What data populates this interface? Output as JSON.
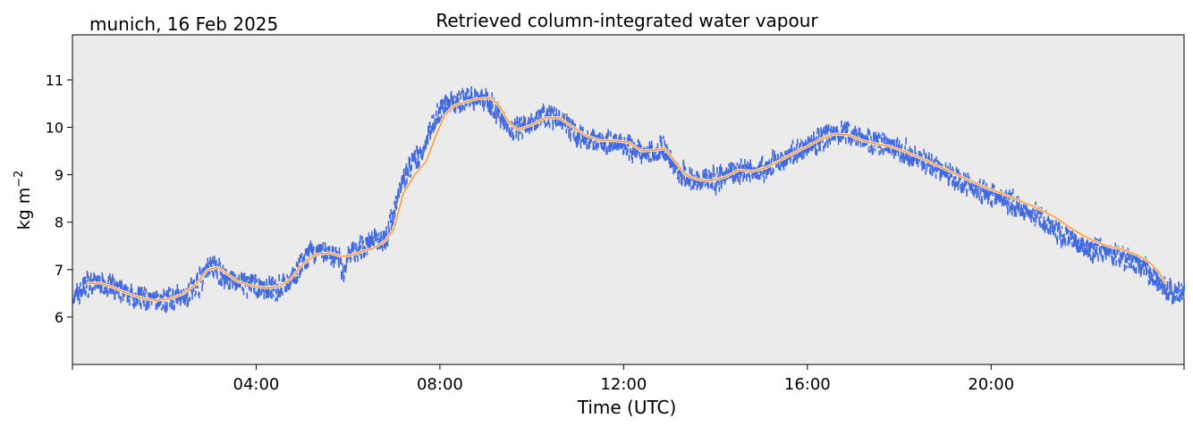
{
  "location_label": "munich, 16 Feb 2025",
  "chart_data": {
    "type": "line",
    "title": "Retrieved column-integrated water vapour",
    "xlabel": "Time (UTC)",
    "ylabel_main": "kg m",
    "ylabel_sup": "−2",
    "xlim_hours": [
      0,
      24.2
    ],
    "ylim": [
      5.0,
      11.95
    ],
    "x_ticks": [
      {
        "hour": 4,
        "label": "04:00"
      },
      {
        "hour": 8,
        "label": "08:00"
      },
      {
        "hour": 12,
        "label": "12:00"
      },
      {
        "hour": 16,
        "label": "16:00"
      },
      {
        "hour": 20,
        "label": "20:00"
      }
    ],
    "y_ticks": [
      {
        "value": 6,
        "label": "6"
      },
      {
        "value": 7,
        "label": "7"
      },
      {
        "value": 8,
        "label": "8"
      },
      {
        "value": 9,
        "label": "9"
      },
      {
        "value": 10,
        "label": "10"
      },
      {
        "value": 11,
        "label": "11"
      }
    ],
    "grid": false,
    "background": "#ebebeb",
    "series": [
      {
        "style": "dense scatter (raw retrievals)",
        "color": "#4169e1",
        "x_hours": [
          0.02,
          0.3,
          0.6,
          1.0,
          1.3,
          1.6,
          1.9,
          2.2,
          2.5,
          2.75,
          2.95,
          3.1,
          3.3,
          3.6,
          3.9,
          4.2,
          4.5,
          4.7,
          4.9,
          5.05,
          5.2,
          5.45,
          5.65,
          5.8,
          5.9,
          6.0,
          6.15,
          6.3,
          6.5,
          6.7,
          6.85,
          7.0,
          7.15,
          7.3,
          7.45,
          7.6,
          7.75,
          7.9,
          8.05,
          8.2,
          8.4,
          8.6,
          8.8,
          9.0,
          9.15,
          9.3,
          9.45,
          9.6,
          9.75,
          10.0,
          10.25,
          10.5,
          10.75,
          11.0,
          11.25,
          11.5,
          11.75,
          12.0,
          12.25,
          12.45,
          12.65,
          12.85,
          13.0,
          13.2,
          13.4,
          13.6,
          13.8,
          14.0,
          14.2,
          14.45,
          14.6,
          14.8,
          15.0,
          15.25,
          15.5,
          15.75,
          16.0,
          16.25,
          16.5,
          16.75,
          17.0,
          17.25,
          17.5,
          17.75,
          18.0,
          18.25,
          18.5,
          18.75,
          19.0,
          19.25,
          19.5,
          19.75,
          20.0,
          20.25,
          20.5,
          20.75,
          21.0,
          21.25,
          21.5,
          21.75,
          22.0,
          22.25,
          22.5,
          22.75,
          23.0,
          23.25,
          23.5,
          23.65,
          23.8,
          24.0,
          24.2
        ],
        "values": [
          6.4,
          6.68,
          6.72,
          6.55,
          6.45,
          6.38,
          6.33,
          6.38,
          6.5,
          6.72,
          7.05,
          7.05,
          6.85,
          6.72,
          6.66,
          6.6,
          6.62,
          6.72,
          7.0,
          7.18,
          7.32,
          7.36,
          7.32,
          7.22,
          6.9,
          7.3,
          7.38,
          7.45,
          7.62,
          7.62,
          7.75,
          8.25,
          8.78,
          9.08,
          9.3,
          9.4,
          9.9,
          10.2,
          10.42,
          10.48,
          10.55,
          10.6,
          10.65,
          10.58,
          10.45,
          10.25,
          10.05,
          9.95,
          10.0,
          10.1,
          10.22,
          10.2,
          10.05,
          9.85,
          9.72,
          9.72,
          9.7,
          9.65,
          9.5,
          9.45,
          9.5,
          9.6,
          9.35,
          9.05,
          8.9,
          8.87,
          8.85,
          8.9,
          8.98,
          9.08,
          9.1,
          9.07,
          9.12,
          9.22,
          9.35,
          9.48,
          9.62,
          9.72,
          9.82,
          9.88,
          9.85,
          9.76,
          9.66,
          9.62,
          9.55,
          9.4,
          9.3,
          9.2,
          9.05,
          8.9,
          8.8,
          8.68,
          8.6,
          8.5,
          8.38,
          8.25,
          8.12,
          7.95,
          7.75,
          7.62,
          7.5,
          7.44,
          7.38,
          7.3,
          7.2,
          7.05,
          6.9,
          6.72,
          6.6,
          6.5,
          6.52
        ]
      },
      {
        "style": "smoothed line",
        "color": "#ff8c2a",
        "x_hours": [
          0.3,
          0.6,
          0.9,
          1.2,
          1.5,
          1.8,
          2.1,
          2.4,
          2.7,
          2.95,
          3.15,
          3.35,
          3.6,
          3.9,
          4.2,
          4.5,
          4.75,
          5.0,
          5.3,
          5.6,
          5.85,
          6.05,
          6.3,
          6.55,
          6.8,
          7.0,
          7.2,
          7.45,
          7.7,
          7.9,
          8.1,
          8.3,
          8.5,
          8.8,
          9.1,
          9.3,
          9.5,
          9.7,
          10.0,
          10.3,
          10.6,
          10.9,
          11.2,
          11.5,
          11.8,
          12.1,
          12.4,
          12.7,
          12.9,
          13.1,
          13.35,
          13.6,
          13.9,
          14.2,
          14.5,
          14.8,
          15.1,
          15.4,
          15.7,
          16.0,
          16.3,
          16.6,
          16.9,
          17.2,
          17.5,
          17.8,
          18.1,
          18.4,
          18.7,
          19.0,
          19.3,
          19.6,
          19.9,
          20.2,
          20.5,
          20.8,
          21.1,
          21.4,
          21.7,
          22.0,
          22.3,
          22.6,
          22.9,
          23.2,
          23.45,
          23.65,
          23.8
        ],
        "values": [
          6.7,
          6.72,
          6.62,
          6.5,
          6.4,
          6.35,
          6.38,
          6.48,
          6.7,
          7.0,
          7.05,
          6.92,
          6.75,
          6.66,
          6.62,
          6.64,
          6.8,
          7.1,
          7.32,
          7.35,
          7.28,
          7.3,
          7.38,
          7.45,
          7.6,
          7.85,
          8.6,
          9.0,
          9.28,
          9.8,
          10.25,
          10.45,
          10.52,
          10.6,
          10.62,
          10.45,
          10.1,
          9.95,
          10.05,
          10.2,
          10.2,
          10.0,
          9.82,
          9.72,
          9.72,
          9.68,
          9.5,
          9.52,
          9.55,
          9.3,
          9.0,
          8.9,
          8.87,
          8.95,
          9.1,
          9.07,
          9.15,
          9.3,
          9.45,
          9.6,
          9.76,
          9.86,
          9.84,
          9.72,
          9.65,
          9.6,
          9.5,
          9.38,
          9.25,
          9.12,
          8.98,
          8.85,
          8.72,
          8.62,
          8.5,
          8.38,
          8.25,
          8.1,
          7.9,
          7.72,
          7.58,
          7.48,
          7.42,
          7.3,
          7.15,
          6.95,
          6.7
        ]
      }
    ]
  }
}
